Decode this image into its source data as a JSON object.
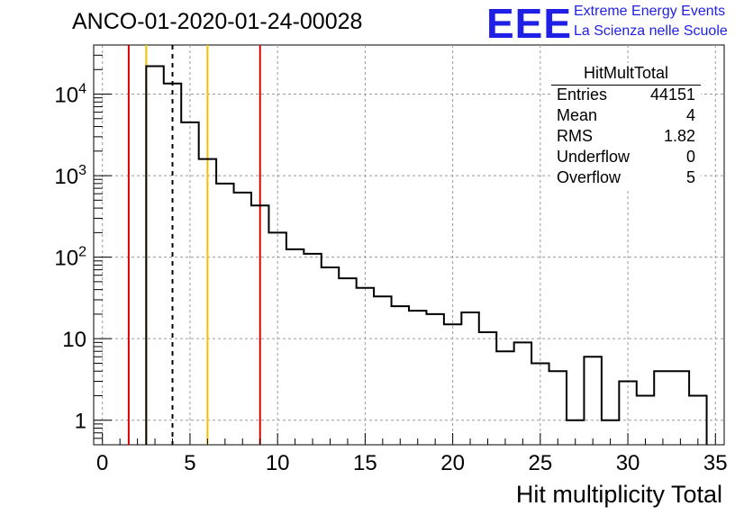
{
  "run_title": "ANCO-01-2020-01-24-00028",
  "logo": {
    "mark": "EEE",
    "line1": "Extreme Energy Events",
    "line2": "La Scienza nelle Scuole",
    "color": "#1f1fe6"
  },
  "stats_box": {
    "title": "HitMultTotal",
    "rows": [
      {
        "key": "Entries",
        "value": "44151"
      },
      {
        "key": "Mean",
        "value": "4"
      },
      {
        "key": "RMS",
        "value": "1.82"
      },
      {
        "key": "Underflow",
        "value": "0"
      },
      {
        "key": "Overflow",
        "value": "5"
      }
    ]
  },
  "chart_data": {
    "type": "histogram",
    "xlabel": "Hit multiplicity Total",
    "ylabel": "",
    "xlim": [
      -0.5,
      35.5
    ],
    "ylim": [
      0.5,
      40000
    ],
    "log_y": true,
    "grid": true,
    "bin_width": 1,
    "x_ticks": [
      0,
      5,
      10,
      15,
      20,
      25,
      30,
      35
    ],
    "y_ticks": [
      {
        "value": 1,
        "label": "1",
        "exp": ""
      },
      {
        "value": 10,
        "label": "10",
        "exp": ""
      },
      {
        "value": 100,
        "label": "10",
        "exp": "2"
      },
      {
        "value": 1000,
        "label": "10",
        "exp": "3"
      },
      {
        "value": 10000,
        "label": "10",
        "exp": "4"
      }
    ],
    "bins": [
      {
        "x": 3,
        "y": 22000
      },
      {
        "x": 4,
        "y": 13500
      },
      {
        "x": 5,
        "y": 4500
      },
      {
        "x": 6,
        "y": 1600
      },
      {
        "x": 7,
        "y": 800
      },
      {
        "x": 8,
        "y": 620
      },
      {
        "x": 9,
        "y": 430
      },
      {
        "x": 10,
        "y": 200
      },
      {
        "x": 11,
        "y": 125
      },
      {
        "x": 12,
        "y": 110
      },
      {
        "x": 13,
        "y": 75
      },
      {
        "x": 14,
        "y": 55
      },
      {
        "x": 15,
        "y": 42
      },
      {
        "x": 16,
        "y": 33
      },
      {
        "x": 17,
        "y": 25
      },
      {
        "x": 18,
        "y": 22
      },
      {
        "x": 19,
        "y": 20
      },
      {
        "x": 20,
        "y": 15
      },
      {
        "x": 21,
        "y": 21
      },
      {
        "x": 22,
        "y": 12
      },
      {
        "x": 23,
        "y": 7
      },
      {
        "x": 24,
        "y": 9
      },
      {
        "x": 25,
        "y": 5
      },
      {
        "x": 26,
        "y": 4
      },
      {
        "x": 27,
        "y": 1
      },
      {
        "x": 28,
        "y": 6
      },
      {
        "x": 29,
        "y": 1
      },
      {
        "x": 30,
        "y": 3
      },
      {
        "x": 31,
        "y": 2
      },
      {
        "x": 32,
        "y": 4
      },
      {
        "x": 33,
        "y": 4
      },
      {
        "x": 34,
        "y": 2
      }
    ],
    "vertical_lines": [
      {
        "x": 1.5,
        "color": "#dd0000",
        "style": "solid"
      },
      {
        "x": 2.5,
        "color": "#f2c200",
        "style": "solid"
      },
      {
        "x": 4.0,
        "color": "#000000",
        "style": "dashed"
      },
      {
        "x": 6.0,
        "color": "#f2c200",
        "style": "solid"
      },
      {
        "x": 9.0,
        "color": "#dd0000",
        "style": "solid"
      }
    ]
  }
}
